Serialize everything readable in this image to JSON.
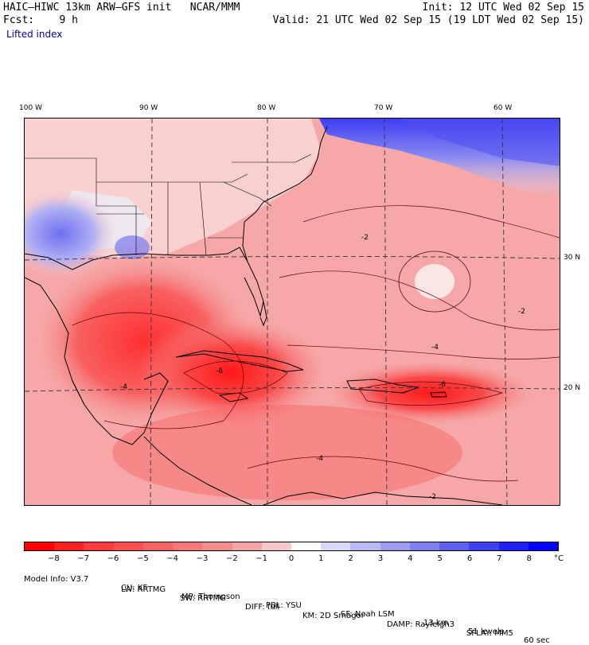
{
  "header": {
    "title_left": "HAIC–HIWC 13km ARW–GFS init   NCAR/MMM",
    "fcst_label": "Fcst:    9 h",
    "field_name": "Lifted index",
    "init_text": "Init: 12 UTC Wed 02 Sep 15",
    "valid_text": "Valid: 21 UTC Wed 02 Sep 15 (19 LDT Wed 02 Sep 15)"
  },
  "map": {
    "lon_labels": [
      "100 W",
      "90 W",
      "80 W",
      "70 W",
      "60 W"
    ],
    "lat_labels": [
      "30 N",
      "20 N"
    ],
    "contour_labels": [
      "-2",
      "-4",
      "-6",
      "-4",
      "-2",
      "-2",
      "-4",
      "-6"
    ]
  },
  "colorbar": {
    "colors": [
      "#ff0000",
      "#ff2020",
      "#ff3b3b",
      "#ff5050",
      "#f86464",
      "#f67878",
      "#f48c8c",
      "#f4a5a5",
      "#f8c8c8",
      "#ffffff",
      "#d8d8f8",
      "#b8b8f4",
      "#9c9cf0",
      "#7f7ff0",
      "#5f5ff0",
      "#4040f4",
      "#2020f8",
      "#0000ff"
    ],
    "ticks": [
      "−8",
      "−7",
      "−6",
      "−5",
      "−4",
      "−3",
      "−2",
      "−1",
      "0",
      "1",
      "2",
      "3",
      "4",
      "5",
      "6",
      "7",
      "8"
    ],
    "unit": "°C"
  },
  "footer": {
    "line1": [
      {
        "label": "Model Info: V3.7"
      },
      {
        "label": "CU: KF"
      },
      {
        "label": "MP: Thompson"
      },
      {
        "label": "PBL: YSU"
      },
      {
        "label": "SF: Noah LSM"
      },
      {
        "label": "13 km"
      },
      {
        "label": "51 levels"
      },
      {
        "label": "60 sec"
      }
    ],
    "line2": [
      {
        "label": "LW: RRTMG"
      },
      {
        "label": "SW: RRTMG"
      },
      {
        "label": "DIFF: full"
      },
      {
        "label": "KM: 2D Smagor"
      },
      {
        "label": "DAMP: Rayleigh3"
      },
      {
        "label": "SFLAY: MM5"
      }
    ]
  }
}
